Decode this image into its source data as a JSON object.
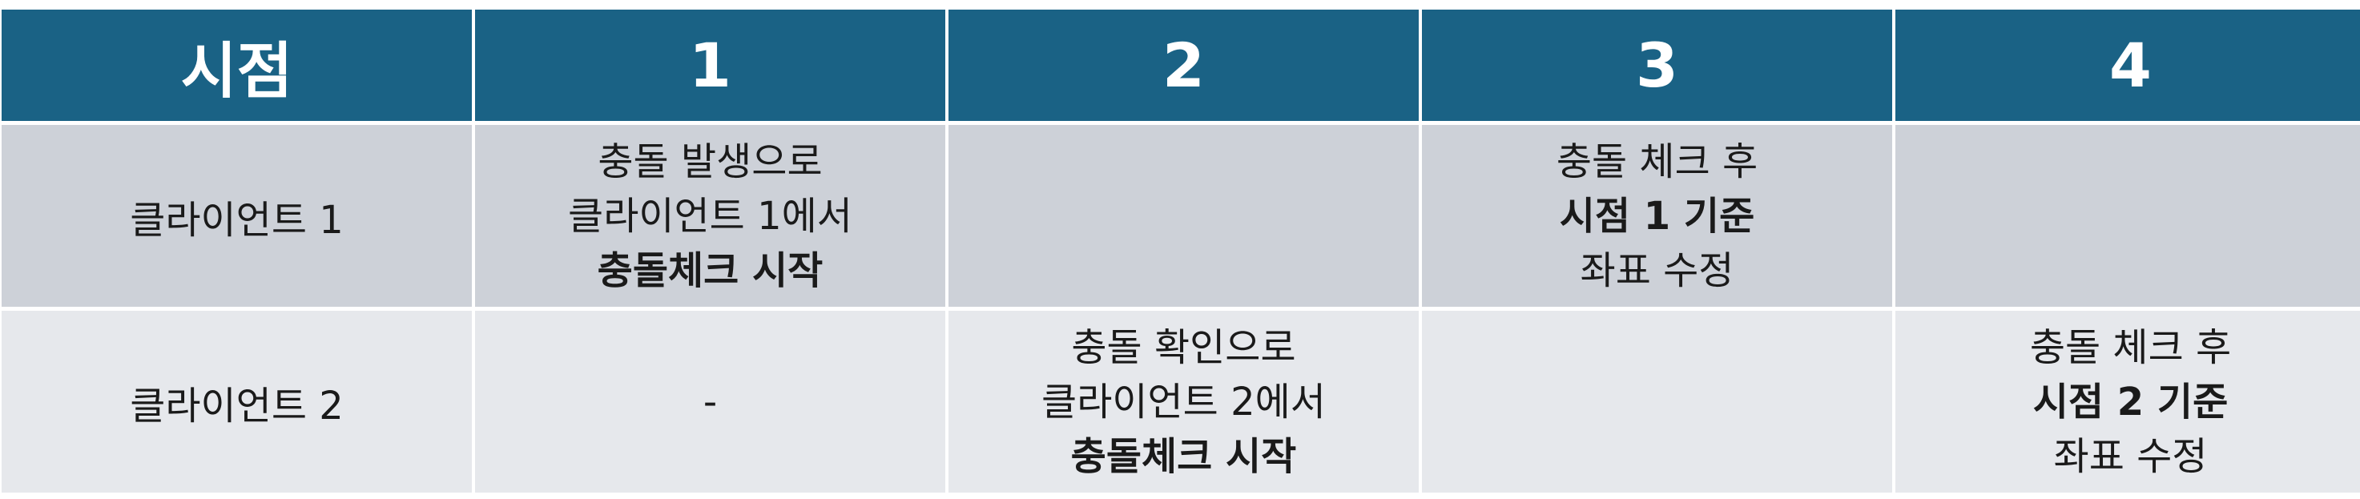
{
  "header": {
    "col0": "시점",
    "col1": "1",
    "col2": "2",
    "col3": "3",
    "col4": "4"
  },
  "rows": [
    {
      "label": "클라이언트 1",
      "c1": [
        "충돌 발생으로",
        "클라이언트 1에서",
        "충돌체크 시작"
      ],
      "c2": [],
      "c3": [
        "충돌 체크 후",
        "시점 1 기준",
        "좌표 수정"
      ],
      "c4": []
    },
    {
      "label": "클라이언트 2",
      "c1": [
        "-"
      ],
      "c2": [
        "충돌 확인으로",
        "클라이언트 2에서",
        "충돌체크 시작"
      ],
      "c3": [],
      "c4": [
        "충돌 체크 후",
        "시점 2 기준",
        "좌표 수정"
      ]
    }
  ],
  "colors": {
    "header_bg": "#1a6285",
    "row1_bg": "#cdd1d8",
    "row2_bg": "#e6e8ec"
  }
}
